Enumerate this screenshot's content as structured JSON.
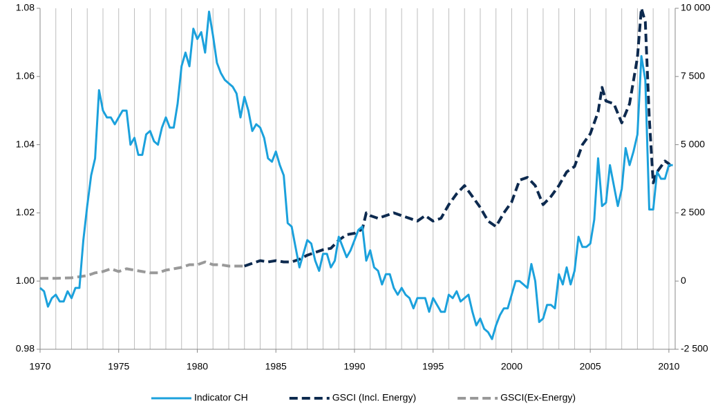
{
  "chart_data": {
    "type": "line",
    "xlim": [
      1970,
      2010.4
    ],
    "xticks": [
      1970,
      1975,
      1980,
      1985,
      1990,
      1995,
      2000,
      2005,
      2010
    ],
    "x_grid": [
      1970,
      1971,
      1972,
      1973,
      1974,
      1975,
      1976,
      1977,
      1978,
      1979,
      1980,
      1981,
      1982,
      1983,
      1984,
      1985,
      1986,
      1987,
      1988,
      1989,
      1990,
      1991,
      1992,
      1993,
      1994,
      1995,
      1996,
      1997,
      1998,
      1999,
      2000,
      2001,
      2002,
      2003,
      2004,
      2005,
      2006,
      2007,
      2008,
      2009,
      2010
    ],
    "ylim": [
      0.98,
      1.08
    ],
    "yticks": [
      {
        "value": 0.98,
        "label": "0.98"
      },
      {
        "value": 1.0,
        "label": "1.00"
      },
      1.02,
      1.04,
      1.06,
      1.08
    ],
    "y2lim": [
      -2500,
      10000
    ],
    "y2ticks": [
      {
        "value": -2500,
        "label": "-2 500"
      },
      0,
      {
        "value": 2500,
        "label": "2 500"
      },
      {
        "value": 5000,
        "label": "5 000"
      },
      {
        "value": 7500,
        "label": "7 500"
      },
      {
        "value": 10000,
        "label": "10 000"
      }
    ],
    "legend": "bottom",
    "series": [
      {
        "name": "Indicator CH",
        "color": "#1ba1dc",
        "dash": false,
        "x": [
          1970,
          1970.25,
          1970.5,
          1970.75,
          1971,
          1971.25,
          1971.5,
          1971.75,
          1972,
          1972.25,
          1972.5,
          1972.75,
          1973,
          1973.25,
          1973.5,
          1973.75,
          1974,
          1974.25,
          1974.5,
          1974.75,
          1975,
          1975.25,
          1975.5,
          1975.75,
          1976,
          1976.25,
          1976.5,
          1976.75,
          1977,
          1977.25,
          1977.5,
          1977.75,
          1978,
          1978.25,
          1978.5,
          1978.75,
          1979,
          1979.25,
          1979.5,
          1979.75,
          1980,
          1980.25,
          1980.5,
          1980.75,
          1981,
          1981.25,
          1981.5,
          1981.75,
          1982,
          1982.25,
          1982.5,
          1982.75,
          1983,
          1983.25,
          1983.5,
          1983.75,
          1984,
          1984.25,
          1984.5,
          1984.75,
          1985,
          1985.25,
          1985.5,
          1985.75,
          1986,
          1986.25,
          1986.5,
          1986.75,
          1987,
          1987.25,
          1987.5,
          1987.75,
          1988,
          1988.25,
          1988.5,
          1988.75,
          1989,
          1989.25,
          1989.5,
          1989.75,
          1990,
          1990.25,
          1990.5,
          1990.75,
          1991,
          1991.25,
          1991.5,
          1991.75,
          1992,
          1992.25,
          1992.5,
          1992.75,
          1993,
          1993.25,
          1993.5,
          1993.75,
          1994,
          1994.25,
          1994.5,
          1994.75,
          1995,
          1995.25,
          1995.5,
          1995.75,
          1996,
          1996.25,
          1996.5,
          1996.75,
          1997,
          1997.25,
          1997.5,
          1997.75,
          1998,
          1998.25,
          1998.5,
          1998.75,
          1999,
          1999.25,
          1999.5,
          1999.75,
          2000,
          2000.25,
          2000.5,
          2000.75,
          2001,
          2001.25,
          2001.5,
          2001.75,
          2002,
          2002.25,
          2002.5,
          2002.75,
          2003,
          2003.25,
          2003.5,
          2003.75,
          2004,
          2004.25,
          2004.5,
          2004.75,
          2005,
          2005.25,
          2005.5,
          2005.75,
          2006,
          2006.25,
          2006.5,
          2006.75,
          2007,
          2007.25,
          2007.5,
          2007.75,
          2008,
          2008.25,
          2008.5,
          2008.75,
          2009,
          2009.25,
          2009.5,
          2009.75,
          2010,
          2010.25
        ],
        "values": [
          0.998,
          0.997,
          0.9925,
          0.995,
          0.996,
          0.994,
          0.994,
          0.997,
          0.995,
          0.998,
          0.998,
          1.012,
          1.022,
          1.031,
          1.036,
          1.056,
          1.05,
          1.048,
          1.048,
          1.046,
          1.048,
          1.05,
          1.05,
          1.04,
          1.042,
          1.037,
          1.037,
          1.043,
          1.044,
          1.041,
          1.04,
          1.045,
          1.048,
          1.045,
          1.045,
          1.052,
          1.063,
          1.067,
          1.063,
          1.074,
          1.071,
          1.073,
          1.067,
          1.079,
          1.072,
          1.064,
          1.061,
          1.059,
          1.058,
          1.057,
          1.055,
          1.048,
          1.054,
          1.05,
          1.044,
          1.046,
          1.045,
          1.042,
          1.036,
          1.035,
          1.038,
          1.034,
          1.031,
          1.017,
          1.016,
          1.01,
          1.004,
          1.008,
          1.012,
          1.011,
          1.006,
          1.003,
          1.008,
          1.008,
          1.004,
          1.006,
          1.013,
          1.01,
          1.007,
          1.009,
          1.012,
          1.015,
          1.016,
          1.006,
          1.009,
          1.004,
          1.003,
          0.999,
          1.002,
          1.002,
          0.998,
          0.996,
          0.998,
          0.996,
          0.995,
          0.992,
          0.995,
          0.995,
          0.995,
          0.991,
          0.995,
          0.993,
          0.991,
          0.991,
          0.996,
          0.995,
          0.997,
          0.994,
          0.995,
          0.996,
          0.991,
          0.987,
          0.989,
          0.986,
          0.985,
          0.983,
          0.987,
          0.99,
          0.992,
          0.992,
          0.996,
          1.0,
          1.0,
          0.999,
          0.998,
          1.005,
          1.0,
          0.988,
          0.989,
          0.993,
          0.993,
          0.992,
          1.002,
          0.999,
          1.004,
          0.999,
          1.003,
          1.013,
          1.01,
          1.01,
          1.011,
          1.018,
          1.036,
          1.022,
          1.023,
          1.034,
          1.028,
          1.022,
          1.027,
          1.039,
          1.034,
          1.038,
          1.043,
          1.066,
          1.059,
          1.021,
          1.021,
          1.032,
          1.03,
          1.03,
          1.034,
          1.034
        ]
      },
      {
        "name": "GSCI (Incl. Energy)",
        "color": "#0d2a4f",
        "dash": true,
        "axis": "y2",
        "x": [
          1983,
          1983.5,
          1984,
          1984.5,
          1985,
          1985.5,
          1986,
          1986.5,
          1987,
          1987.5,
          1988,
          1988.5,
          1989,
          1989.5,
          1990,
          1990.5,
          1990.75,
          1991,
          1991.5,
          1992,
          1992.5,
          1993,
          1993.5,
          1994,
          1994.5,
          1995,
          1995.5,
          1996,
          1996.5,
          1997,
          1997.5,
          1998,
          1998.5,
          1999,
          1999.5,
          2000,
          2000.5,
          2001,
          2001.5,
          2002,
          2002.5,
          2003,
          2003.5,
          2004,
          2004.5,
          2005,
          2005.5,
          2005.75,
          2006,
          2006.5,
          2007,
          2007.5,
          2008,
          2008.25,
          2008.5,
          2008.75,
          2009,
          2009.25,
          2009.5,
          2009.75,
          2010,
          2010.25
        ],
        "values": [
          550,
          650,
          750,
          700,
          750,
          700,
          700,
          800,
          950,
          1050,
          1150,
          1200,
          1500,
          1700,
          1750,
          1900,
          2500,
          2400,
          2300,
          2400,
          2500,
          2400,
          2300,
          2200,
          2400,
          2200,
          2300,
          2800,
          3200,
          3500,
          3100,
          2700,
          2200,
          2000,
          2500,
          2900,
          3700,
          3800,
          3500,
          2800,
          3100,
          3500,
          4000,
          4200,
          5000,
          5400,
          6200,
          7100,
          6600,
          6500,
          5800,
          6500,
          8200,
          10000,
          9500,
          6000,
          3600,
          4000,
          4200,
          4400,
          4300,
          4100
        ]
      },
      {
        "name": "GSCI(Ex-Energy)",
        "color": "#999999",
        "dash": true,
        "axis": "y2",
        "x": [
          1970,
          1971,
          1972,
          1973,
          1973.5,
          1974,
          1974.5,
          1975,
          1975.5,
          1976,
          1976.5,
          1977,
          1977.5,
          1978,
          1978.5,
          1979,
          1979.5,
          1980,
          1980.5,
          1981,
          1981.5,
          1982,
          1982.5,
          1983
        ],
        "values": [
          100,
          100,
          120,
          200,
          300,
          350,
          450,
          350,
          450,
          400,
          350,
          300,
          300,
          400,
          450,
          500,
          600,
          600,
          700,
          600,
          600,
          550,
          550,
          550
        ]
      }
    ]
  }
}
